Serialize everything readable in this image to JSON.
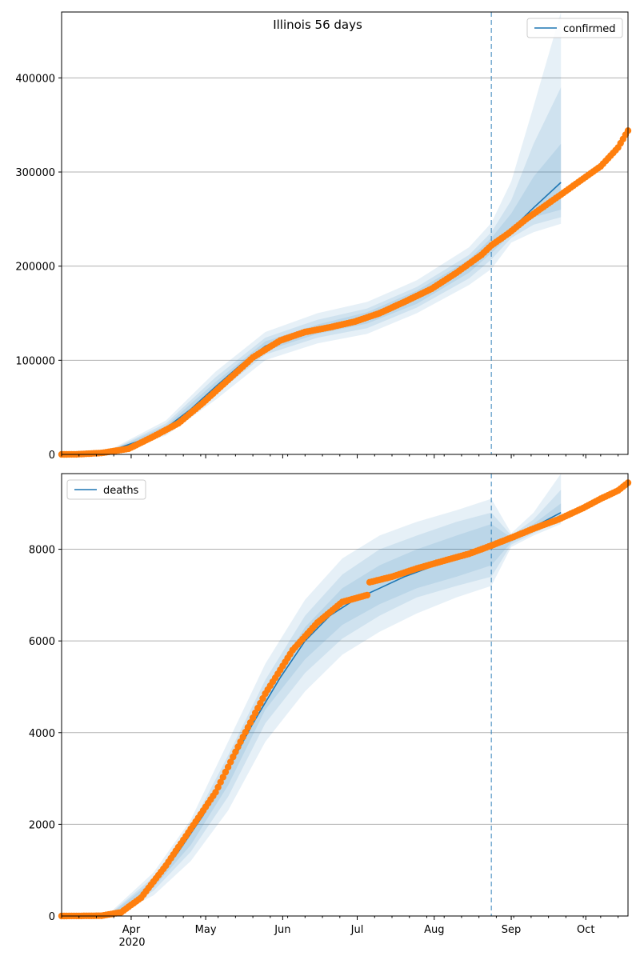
{
  "figure_title": "Illinois 56 days",
  "colors": {
    "line": "#1f77b4",
    "dots": "#ff7f0e",
    "band": "#1f77b4",
    "grid": "#b0b0b0",
    "vline": "#1f77b4"
  },
  "x_axis": {
    "labels": [
      "Apr",
      "May",
      "Jun",
      "Jul",
      "Aug",
      "Sep",
      "Oct"
    ],
    "label_dates": [
      "2020-04-01",
      "2020-05-01",
      "2020-06-01",
      "2020-07-01",
      "2020-08-01",
      "2020-09-01",
      "2020-10-01"
    ],
    "year_label": "2020",
    "range": [
      "2020-03-04",
      "2020-10-18"
    ]
  },
  "chart_data": [
    {
      "type": "line",
      "legend": "confirmed",
      "legend_position": "top-right",
      "ylim": [
        0,
        470000
      ],
      "yticks": [
        0,
        100000,
        200000,
        300000,
        400000
      ],
      "grid": true,
      "forecast_start": "2020-08-24",
      "fit_end": "2020-09-21",
      "fit_curve": [
        [
          "2020-03-04",
          0
        ],
        [
          "2020-03-15",
          500
        ],
        [
          "2020-03-25",
          5000
        ],
        [
          "2020-04-05",
          15000
        ],
        [
          "2020-04-15",
          28000
        ],
        [
          "2020-04-25",
          48000
        ],
        [
          "2020-05-05",
          72000
        ],
        [
          "2020-05-15",
          95000
        ],
        [
          "2020-05-25",
          115000
        ],
        [
          "2020-06-05",
          127000
        ],
        [
          "2020-06-15",
          133000
        ],
        [
          "2020-06-25",
          138000
        ],
        [
          "2020-07-05",
          145000
        ],
        [
          "2020-07-15",
          155000
        ],
        [
          "2020-07-25",
          167000
        ],
        [
          "2020-08-05",
          182000
        ],
        [
          "2020-08-15",
          200000
        ],
        [
          "2020-08-24",
          222000
        ],
        [
          "2020-09-01",
          239000
        ],
        [
          "2020-09-10",
          262000
        ],
        [
          "2020-09-21",
          289000
        ]
      ],
      "observed": [
        [
          "2020-03-04",
          0
        ],
        [
          "2020-03-10",
          100
        ],
        [
          "2020-03-20",
          1500
        ],
        [
          "2020-03-31",
          6000
        ],
        [
          "2020-04-10",
          19000
        ],
        [
          "2020-04-20",
          33000
        ],
        [
          "2020-04-30",
          55000
        ],
        [
          "2020-05-10",
          79000
        ],
        [
          "2020-05-20",
          103000
        ],
        [
          "2020-05-31",
          121000
        ],
        [
          "2020-06-10",
          130000
        ],
        [
          "2020-06-20",
          135000
        ],
        [
          "2020-06-30",
          141000
        ],
        [
          "2020-07-10",
          150000
        ],
        [
          "2020-07-20",
          162000
        ],
        [
          "2020-07-31",
          176000
        ],
        [
          "2020-08-10",
          193000
        ],
        [
          "2020-08-20",
          212000
        ],
        [
          "2020-08-24",
          222000
        ],
        [
          "2020-08-31",
          235000
        ],
        [
          "2020-09-07",
          250000
        ],
        [
          "2020-09-14",
          263000
        ],
        [
          "2020-09-21",
          276000
        ],
        [
          "2020-09-30",
          293000
        ],
        [
          "2020-10-07",
          306000
        ],
        [
          "2020-10-14",
          326000
        ],
        [
          "2020-10-18",
          344000
        ]
      ],
      "bands": [
        {
          "dates": [
            "2020-03-25",
            "2020-04-15",
            "2020-05-05",
            "2020-05-25",
            "2020-06-15",
            "2020-07-05",
            "2020-07-25",
            "2020-08-15",
            "2020-08-24",
            "2020-09-01",
            "2020-09-10",
            "2020-09-21"
          ],
          "lower": [
            3000,
            20000,
            58000,
            100000,
            118000,
            128000,
            150000,
            180000,
            197000,
            225000,
            236000,
            245000
          ],
          "upper": [
            7000,
            36000,
            88000,
            130000,
            150000,
            162000,
            185000,
            220000,
            246000,
            290000,
            370000,
            470000
          ]
        },
        {
          "dates": [
            "2020-03-25",
            "2020-04-15",
            "2020-05-05",
            "2020-05-25",
            "2020-06-15",
            "2020-07-05",
            "2020-07-25",
            "2020-08-15",
            "2020-08-24",
            "2020-09-01",
            "2020-09-10",
            "2020-09-21"
          ],
          "lower": [
            4000,
            23000,
            64000,
            106000,
            124000,
            134000,
            156000,
            187000,
            207000,
            230000,
            244000,
            252000
          ],
          "upper": [
            6000,
            33000,
            82000,
            124000,
            143000,
            155000,
            178000,
            212000,
            236000,
            270000,
            330000,
            390000
          ]
        },
        {
          "dates": [
            "2020-03-25",
            "2020-04-15",
            "2020-05-05",
            "2020-05-25",
            "2020-06-15",
            "2020-07-05",
            "2020-07-25",
            "2020-08-15",
            "2020-08-24",
            "2020-09-01",
            "2020-09-10",
            "2020-09-21"
          ],
          "lower": [
            4500,
            25500,
            68000,
            110000,
            128000,
            139000,
            160000,
            193000,
            214000,
            234000,
            252000,
            260000
          ],
          "upper": [
            5500,
            30500,
            77000,
            120000,
            138000,
            151000,
            174000,
            207000,
            230000,
            256000,
            295000,
            330000
          ]
        }
      ]
    },
    {
      "type": "line",
      "legend": "deaths",
      "legend_position": "top-left",
      "ylim": [
        0,
        9650
      ],
      "yticks": [
        0,
        2000,
        4000,
        6000,
        8000
      ],
      "grid": true,
      "forecast_start": "2020-08-24",
      "fit_end": "2020-09-21",
      "fit_curve": [
        [
          "2020-03-04",
          0
        ],
        [
          "2020-03-20",
          20
        ],
        [
          "2020-03-31",
          150
        ],
        [
          "2020-04-10",
          700
        ],
        [
          "2020-04-20",
          1400
        ],
        [
          "2020-04-30",
          2200
        ],
        [
          "2020-05-10",
          3200
        ],
        [
          "2020-05-20",
          4200
        ],
        [
          "2020-05-31",
          5200
        ],
        [
          "2020-06-10",
          6000
        ],
        [
          "2020-06-20",
          6550
        ],
        [
          "2020-06-30",
          6900
        ],
        [
          "2020-07-10",
          7150
        ],
        [
          "2020-07-20",
          7400
        ],
        [
          "2020-07-31",
          7620
        ],
        [
          "2020-08-10",
          7800
        ],
        [
          "2020-08-24",
          8050
        ],
        [
          "2020-09-07",
          8400
        ],
        [
          "2020-09-21",
          8800
        ]
      ],
      "observed": [
        [
          "2020-03-04",
          0
        ],
        [
          "2020-03-20",
          5
        ],
        [
          "2020-03-28",
          80
        ],
        [
          "2020-04-05",
          400
        ],
        [
          "2020-04-15",
          1100
        ],
        [
          "2020-04-25",
          1900
        ],
        [
          "2020-05-05",
          2700
        ],
        [
          "2020-05-15",
          3800
        ],
        [
          "2020-05-25",
          4850
        ],
        [
          "2020-06-05",
          5800
        ],
        [
          "2020-06-15",
          6400
        ],
        [
          "2020-06-25",
          6850
        ],
        [
          "2020-07-05",
          7000
        ],
        [
          "2020-07-06",
          7280
        ],
        [
          "2020-07-15",
          7400
        ],
        [
          "2020-07-25",
          7580
        ],
        [
          "2020-08-05",
          7750
        ],
        [
          "2020-08-15",
          7900
        ],
        [
          "2020-08-24",
          8080
        ],
        [
          "2020-09-01",
          8250
        ],
        [
          "2020-09-10",
          8450
        ],
        [
          "2020-09-20",
          8650
        ],
        [
          "2020-09-30",
          8900
        ],
        [
          "2020-10-07",
          9100
        ],
        [
          "2020-10-14",
          9280
        ],
        [
          "2020-10-18",
          9450
        ]
      ],
      "bands": [
        {
          "dates": [
            "2020-03-25",
            "2020-04-10",
            "2020-04-25",
            "2020-05-10",
            "2020-05-25",
            "2020-06-10",
            "2020-06-25",
            "2020-07-10",
            "2020-07-25",
            "2020-08-10",
            "2020-08-24",
            "2020-09-01",
            "2020-09-10",
            "2020-09-21"
          ],
          "lower": [
            0,
            450,
            1200,
            2300,
            3800,
            4900,
            5700,
            6200,
            6600,
            6950,
            7200,
            8050,
            8300,
            8550
          ],
          "upper": [
            150,
            950,
            2100,
            3800,
            5500,
            6900,
            7800,
            8300,
            8600,
            8850,
            9100,
            8350,
            8800,
            9650
          ]
        },
        {
          "dates": [
            "2020-03-25",
            "2020-04-10",
            "2020-04-25",
            "2020-05-10",
            "2020-05-25",
            "2020-06-10",
            "2020-06-25",
            "2020-07-10",
            "2020-07-25",
            "2020-08-10",
            "2020-08-24",
            "2020-09-01",
            "2020-09-10",
            "2020-09-21"
          ],
          "lower": [
            20,
            550,
            1400,
            2600,
            4200,
            5300,
            6050,
            6550,
            6950,
            7200,
            7400,
            8100,
            8350,
            8650
          ],
          "upper": [
            120,
            850,
            1950,
            3500,
            5150,
            6550,
            7450,
            8000,
            8300,
            8600,
            8800,
            8300,
            8650,
            9300
          ]
        },
        {
          "dates": [
            "2020-03-25",
            "2020-04-10",
            "2020-04-25",
            "2020-05-10",
            "2020-05-25",
            "2020-06-10",
            "2020-06-25",
            "2020-07-10",
            "2020-07-25",
            "2020-08-10",
            "2020-08-24",
            "2020-09-01",
            "2020-09-10",
            "2020-09-21"
          ],
          "lower": [
            40,
            620,
            1550,
            2850,
            4500,
            5600,
            6350,
            6800,
            7150,
            7400,
            7650,
            8150,
            8400,
            8700
          ],
          "upper": [
            100,
            780,
            1800,
            3300,
            4900,
            6300,
            7150,
            7650,
            8000,
            8300,
            8550,
            8250,
            8550,
            9000
          ]
        }
      ]
    }
  ]
}
